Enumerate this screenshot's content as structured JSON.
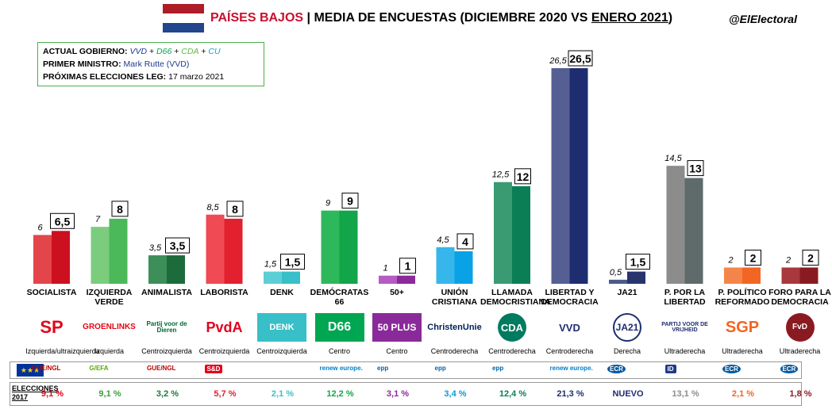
{
  "header": {
    "country": "PAÍSES BAJOS",
    "separator": " | ",
    "title_main": "MEDIA DE ENCUESTAS (DICIEMBRE 2020 VS ",
    "title_underlined": "ENERO 2021",
    "title_end": ")",
    "handle": "@ElElectoral"
  },
  "flag": {
    "colors": [
      "#ae1c28",
      "#ffffff",
      "#21468b"
    ]
  },
  "info": {
    "gov_label": "ACTUAL GOBIERNO:",
    "gov_vvd": "VVD",
    "gov_d66": "D66",
    "gov_cda": "CDA",
    "gov_cu": "CU",
    "plus": " + ",
    "pm_label": "PRIMER MINISTRO:",
    "pm_value": "Mark Rutte (VVD)",
    "next_label": "PRÓXIMAS ELECCIONES LEG:",
    "next_value": "17 marzo 2021"
  },
  "chart_data": {
    "type": "bar",
    "categories": [
      "SOCIALISTA",
      "IZQUIERDA VERDE",
      "ANIMALISTA",
      "LABORISTA",
      "DENK",
      "DEMÓCRATAS 66",
      "50+",
      "UNIÓN CRISTIANA",
      "LLAMADA DEMOCRISTIANA",
      "LIBERTAD Y DEMOCRACIA",
      "JA21",
      "P. POR LA LIBERTAD",
      "P. POLÍTICO REFORMADO",
      "FORO PARA LA DEMOCRACIA"
    ],
    "series": [
      {
        "values": [
          6,
          7,
          3.5,
          8.5,
          1.5,
          9,
          1,
          4.5,
          12.5,
          26.5,
          0.5,
          14.5,
          2,
          2
        ]
      },
      {
        "values": [
          6.5,
          8,
          3.5,
          8,
          1.5,
          9,
          1,
          4,
          12,
          26.5,
          1.5,
          13,
          2,
          2
        ]
      }
    ],
    "old_labels": [
      "6",
      "7",
      "3,5",
      "8,5",
      "1,5",
      "9",
      "1",
      "4,5",
      "12,5",
      "26,5",
      "0,5",
      "14,5",
      "2",
      "2"
    ],
    "new_labels": [
      "6,5",
      "8",
      "3,5",
      "8",
      "1,5",
      "9",
      "1",
      "4",
      "12",
      "26,5",
      "1,5",
      "13",
      "2",
      "2"
    ],
    "colors_old": [
      "#e3454b",
      "#7ccc7e",
      "#3e8e5a",
      "#f04a55",
      "#5ccfd6",
      "#2eb85c",
      "#b45cc2",
      "#36b6ea",
      "#3a9a72",
      "#555f94",
      "#4a5a8a",
      "#8c8c8c",
      "#f4854a",
      "#a8383e"
    ],
    "colors_new": [
      "#cc1020",
      "#4bb85a",
      "#1d6b3a",
      "#e3202e",
      "#38bfc7",
      "#12a54a",
      "#8a2a9a",
      "#0aa2e6",
      "#0b7e55",
      "#1e2d70",
      "#27346e",
      "#5f6a6a",
      "#f26522",
      "#8a1a22"
    ],
    "ylim": [
      0,
      26.5
    ],
    "ideology": [
      "Izquierda/ultraizquierda",
      "Izquierda",
      "Centroizquierda",
      "Centroizquierda",
      "Centroizquierda",
      "Centro",
      "Centro",
      "Centroderecha",
      "Centroderecha",
      "Centroderecha",
      "Derecha",
      "Ultraderecha",
      "Ultraderecha",
      "Ultraderecha"
    ],
    "logos": [
      "SP",
      "GROENLINKS",
      "Partij voor de Dieren",
      "PvdA",
      "DENK",
      "D66",
      "50 PLUS",
      "ChristenUnie",
      "CDA",
      "VVD",
      "JA21",
      "PARTIJ VOOR DE VRIJHEID",
      "SGP",
      "FvD"
    ],
    "eu_groups": [
      "GUE/NGL",
      "G/EFA",
      "GUE/NGL",
      "S&D",
      "",
      "renew europe.",
      "epp",
      "epp",
      "epp",
      "renew europe.",
      "ECR",
      "ID",
      "ECR",
      "ECR"
    ],
    "results_label": [
      "ELECCIONES",
      "2017"
    ],
    "results_2017": [
      "9,1 %",
      "9,1 %",
      "3,2 %",
      "5,7 %",
      "2,1 %",
      "12,2 %",
      "3,1 %",
      "3,4 %",
      "12,4  %",
      "21,3 %",
      "NUEVO",
      "13,1 %",
      "2,1 %",
      "1,8 %"
    ]
  }
}
